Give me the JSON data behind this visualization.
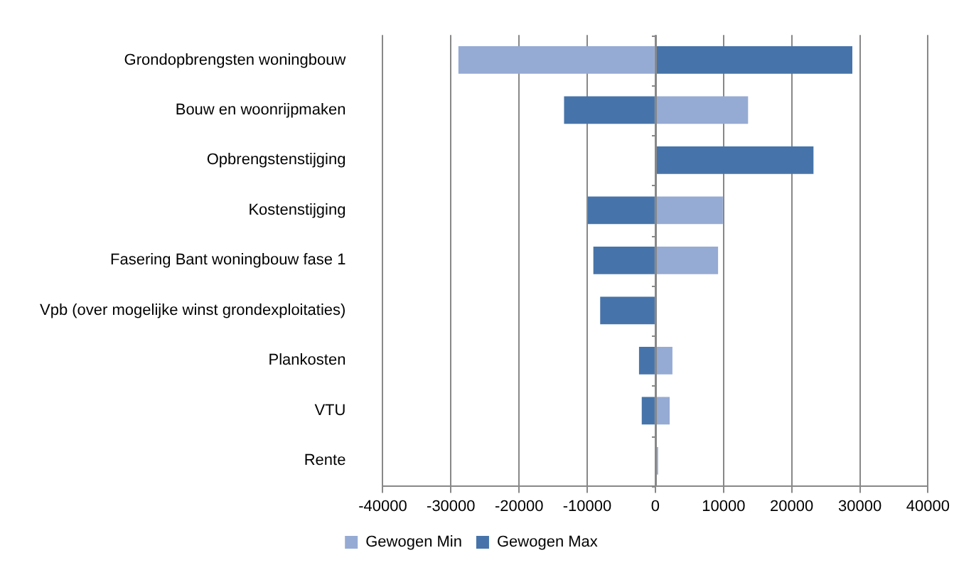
{
  "chart_data": {
    "type": "bar",
    "orientation": "horizontal",
    "categories": [
      "Grondopbrengsten woningbouw",
      "Bouw en woonrijpmaken",
      "Opbrengstenstijging",
      "Kostenstijging",
      "Fasering Bant woningbouw fase 1",
      "Vpb (over mogelijke winst grondexploitaties)",
      "Plankosten",
      "VTU",
      "Rente"
    ],
    "series": [
      {
        "name": "Gewogen Min",
        "color": "#95abd4",
        "values": [
          -28900,
          13600,
          null,
          9900,
          9200,
          null,
          2500,
          2100,
          400
        ]
      },
      {
        "name": "Gewogen Max",
        "color": "#4674aa",
        "values": [
          28900,
          -13400,
          23200,
          -9900,
          -9100,
          -8100,
          -2400,
          -2000,
          null
        ]
      }
    ],
    "xlim": [
      -40000,
      40000
    ],
    "xticks": [
      -40000,
      -30000,
      -20000,
      -10000,
      0,
      10000,
      20000,
      30000,
      40000
    ],
    "stacked": true,
    "grid": "x",
    "legend": "bottom"
  }
}
